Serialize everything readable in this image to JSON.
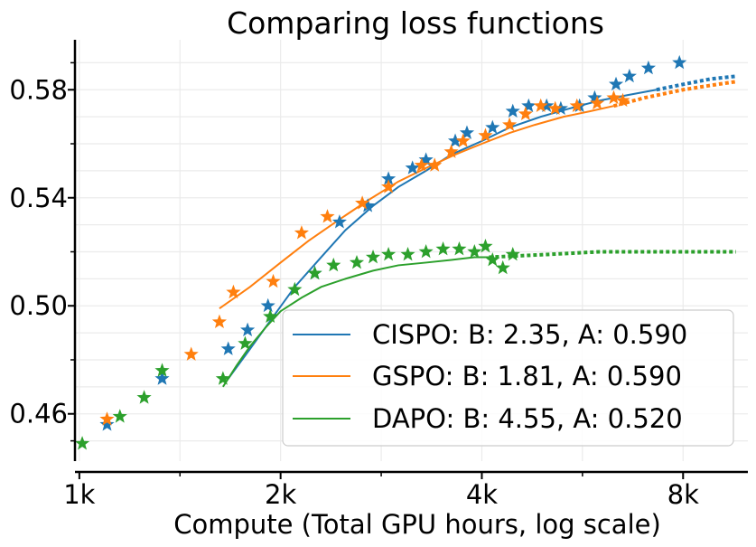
{
  "chart_data": {
    "type": "scatter",
    "title": "Comparing loss functions",
    "xlabel": "Compute (Total GPU hours, log scale)",
    "ylabel": "",
    "xscale": "log2",
    "xlim": [
      985,
      10000
    ],
    "ylim": [
      0.4425,
      0.5985
    ],
    "grid": true,
    "legend_position": "bottom-right",
    "x_ticks": [
      {
        "value": 1000,
        "label": "1k"
      },
      {
        "value": 2000,
        "label": "2k"
      },
      {
        "value": 4000,
        "label": "4k"
      },
      {
        "value": 8000,
        "label": "8k"
      }
    ],
    "y_ticks": [
      {
        "value": 0.46,
        "label": "0.46"
      },
      {
        "value": 0.5,
        "label": "0.50"
      },
      {
        "value": 0.54,
        "label": "0.54"
      },
      {
        "value": 0.58,
        "label": "0.58"
      }
    ],
    "series": [
      {
        "name": "CISPO: B: 2.35, A: 0.590",
        "color": "#1f77b4",
        "points": [
          [
            1100,
            0.456
          ],
          [
            1330,
            0.473
          ],
          [
            1670,
            0.484
          ],
          [
            1785,
            0.491
          ],
          [
            1915,
            0.5
          ],
          [
            2250,
            0.512
          ],
          [
            2450,
            0.531
          ],
          [
            2700,
            0.537
          ],
          [
            2900,
            0.547
          ],
          [
            3150,
            0.551
          ],
          [
            3300,
            0.554
          ],
          [
            3650,
            0.561
          ],
          [
            3800,
            0.564
          ],
          [
            4150,
            0.566
          ],
          [
            4450,
            0.572
          ],
          [
            4700,
            0.574
          ],
          [
            5000,
            0.574
          ],
          [
            5250,
            0.573
          ],
          [
            5600,
            0.574
          ],
          [
            5900,
            0.577
          ],
          [
            6350,
            0.582
          ],
          [
            6650,
            0.585
          ],
          [
            7100,
            0.588
          ],
          [
            7900,
            0.59
          ]
        ],
        "fit": [
          [
            1670,
            0.473
          ],
          [
            1800,
            0.484
          ],
          [
            1950,
            0.496
          ],
          [
            2100,
            0.507
          ],
          [
            2300,
            0.518
          ],
          [
            2500,
            0.528
          ],
          [
            2750,
            0.537
          ],
          [
            3000,
            0.544
          ],
          [
            3300,
            0.55
          ],
          [
            3600,
            0.556
          ],
          [
            4000,
            0.561
          ],
          [
            4400,
            0.566
          ],
          [
            4900,
            0.57
          ],
          [
            5400,
            0.573
          ],
          [
            6000,
            0.576
          ],
          [
            6600,
            0.578
          ],
          [
            7300,
            0.58
          ]
        ],
        "extrapolation": [
          [
            7300,
            0.58
          ],
          [
            8000,
            0.582
          ],
          [
            8800,
            0.584
          ],
          [
            9600,
            0.585
          ]
        ]
      },
      {
        "name": "GSPO: B: 1.81, A: 0.590",
        "color": "#ff7f0e",
        "points": [
          [
            1100,
            0.458
          ],
          [
            1470,
            0.482
          ],
          [
            1620,
            0.494
          ],
          [
            1700,
            0.505
          ],
          [
            1950,
            0.509
          ],
          [
            2150,
            0.527
          ],
          [
            2350,
            0.533
          ],
          [
            2650,
            0.538
          ],
          [
            2900,
            0.544
          ],
          [
            3250,
            0.552
          ],
          [
            3400,
            0.552
          ],
          [
            3600,
            0.557
          ],
          [
            3750,
            0.561
          ],
          [
            4050,
            0.563
          ],
          [
            4400,
            0.567
          ],
          [
            4650,
            0.571
          ],
          [
            4900,
            0.574
          ],
          [
            5150,
            0.573
          ],
          [
            5550,
            0.574
          ],
          [
            5950,
            0.575
          ],
          [
            6300,
            0.577
          ],
          [
            6500,
            0.576
          ]
        ],
        "fit": [
          [
            1620,
            0.499
          ],
          [
            1800,
            0.507
          ],
          [
            2000,
            0.516
          ],
          [
            2200,
            0.524
          ],
          [
            2450,
            0.532
          ],
          [
            2700,
            0.539
          ],
          [
            3000,
            0.546
          ],
          [
            3300,
            0.551
          ],
          [
            3650,
            0.556
          ],
          [
            4000,
            0.56
          ],
          [
            4400,
            0.564
          ],
          [
            4800,
            0.567
          ],
          [
            5300,
            0.57
          ],
          [
            5800,
            0.572
          ],
          [
            6300,
            0.574
          ]
        ],
        "extrapolation": [
          [
            6300,
            0.574
          ],
          [
            7000,
            0.577
          ],
          [
            8000,
            0.58
          ],
          [
            9000,
            0.582
          ],
          [
            9600,
            0.583
          ]
        ]
      },
      {
        "name": "DAPO: B: 4.55, A: 0.520",
        "color": "#2ca02c",
        "points": [
          [
            1010,
            0.449
          ],
          [
            1150,
            0.459
          ],
          [
            1250,
            0.466
          ],
          [
            1330,
            0.476
          ],
          [
            1640,
            0.473
          ],
          [
            1770,
            0.486
          ],
          [
            1930,
            0.496
          ],
          [
            2100,
            0.506
          ],
          [
            2250,
            0.512
          ],
          [
            2400,
            0.515
          ],
          [
            2600,
            0.516
          ],
          [
            2750,
            0.518
          ],
          [
            2900,
            0.519
          ],
          [
            3100,
            0.519
          ],
          [
            3300,
            0.52
          ],
          [
            3500,
            0.521
          ],
          [
            3700,
            0.521
          ],
          [
            3900,
            0.52
          ],
          [
            4050,
            0.522
          ],
          [
            4150,
            0.517
          ],
          [
            4300,
            0.514
          ],
          [
            4450,
            0.519
          ]
        ],
        "fit": [
          [
            1640,
            0.47
          ],
          [
            1720,
            0.478
          ],
          [
            1800,
            0.485
          ],
          [
            1900,
            0.492
          ],
          [
            2000,
            0.498
          ],
          [
            2150,
            0.503
          ],
          [
            2300,
            0.507
          ],
          [
            2500,
            0.51
          ],
          [
            2750,
            0.513
          ],
          [
            3000,
            0.515
          ],
          [
            3300,
            0.516
          ],
          [
            3600,
            0.517
          ],
          [
            3900,
            0.518
          ],
          [
            4100,
            0.518
          ]
        ],
        "extrapolation": [
          [
            4100,
            0.518
          ],
          [
            5000,
            0.519
          ],
          [
            6000,
            0.52
          ],
          [
            7500,
            0.52
          ],
          [
            9600,
            0.52
          ]
        ]
      }
    ]
  }
}
